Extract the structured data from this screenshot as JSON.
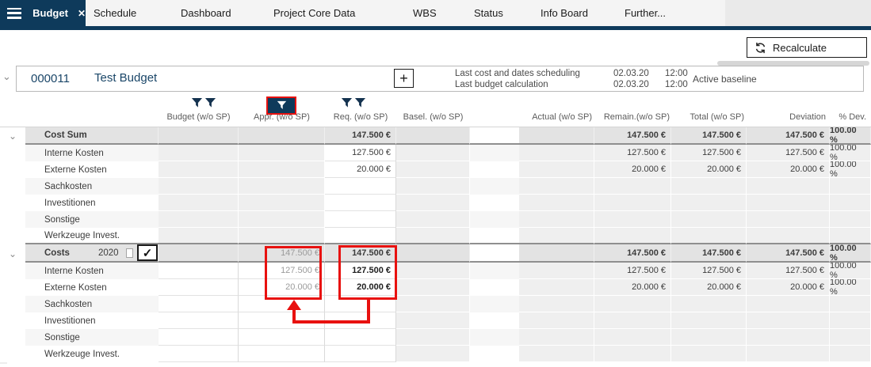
{
  "tabs": {
    "active": "Budget",
    "items": [
      "Schedule",
      "Dashboard",
      "Project Core Data",
      "WBS",
      "Status",
      "Info Board",
      "Further..."
    ]
  },
  "toolbar": {
    "recalculate_label": "Recalculate"
  },
  "project": {
    "id": "000011",
    "name": "Test Budget",
    "info": [
      {
        "label": "Last cost and dates scheduling",
        "date": "02.03.20",
        "time": "12:00"
      },
      {
        "label": "Last budget calculation",
        "date": "02.03.20",
        "time": "12:00"
      }
    ],
    "baseline": "Active baseline"
  },
  "columns": {
    "budget": "Budget (w/o SP)",
    "appr": "Appr. (w/o SP)",
    "req": "Req. (w/o SP)",
    "basel": "Basel. (w/o SP)",
    "actual": "Actual (w/o SP)",
    "remain": "Remain.(w/o SP)",
    "total": "Total (w/o SP)",
    "deviation": "Deviation",
    "pdev": "% Dev."
  },
  "table": {
    "groups": [
      {
        "header": {
          "label": "Cost Sum",
          "req": "147.500 €",
          "remain": "147.500 €",
          "total": "147.500 €",
          "deviation": "147.500 €",
          "pdev": "100.00 %"
        },
        "rows": [
          {
            "label": "Interne Kosten",
            "req": "127.500 €",
            "remain": "127.500 €",
            "total": "127.500 €",
            "deviation": "127.500 €",
            "pdev": "100.00 %"
          },
          {
            "label": "Externe Kosten",
            "req": "20.000 €",
            "remain": "20.000 €",
            "total": "20.000 €",
            "deviation": "20.000 €",
            "pdev": "100.00 %"
          },
          {
            "label": "Sachkosten"
          },
          {
            "label": "Investitionen"
          },
          {
            "label": "Sonstige"
          },
          {
            "label": "Werkzeuge Invest."
          }
        ]
      },
      {
        "header": {
          "label": "Costs",
          "year": "2020",
          "checkbox_small_checked": false,
          "checkbox_large_checked": true,
          "checkmark_glyph": "✓",
          "appr": "147.500 €",
          "req": "147.500 €",
          "remain": "147.500 €",
          "total": "147.500 €",
          "deviation": "147.500 €",
          "pdev": "100.00 %"
        },
        "rows": [
          {
            "label": "Interne Kosten",
            "appr": "127.500 €",
            "req": "127.500 €",
            "remain": "127.500 €",
            "total": "127.500 €",
            "deviation": "127.500 €",
            "pdev": "100.00 %"
          },
          {
            "label": "Externe Kosten",
            "appr": "20.000 €",
            "req": "20.000 €",
            "remain": "20.000 €",
            "total": "20.000 €",
            "deviation": "20.000 €",
            "pdev": "100.00 %"
          },
          {
            "label": "Sachkosten"
          },
          {
            "label": "Investitionen"
          },
          {
            "label": "Sonstige"
          },
          {
            "label": "Werkzeuge Invest."
          }
        ]
      }
    ]
  },
  "colors": {
    "accent_navy": "#0e3a5b",
    "highlight_red": "#e8110f"
  },
  "glyphs": {
    "expander": "⌄",
    "close": "✕",
    "plus": "+"
  }
}
